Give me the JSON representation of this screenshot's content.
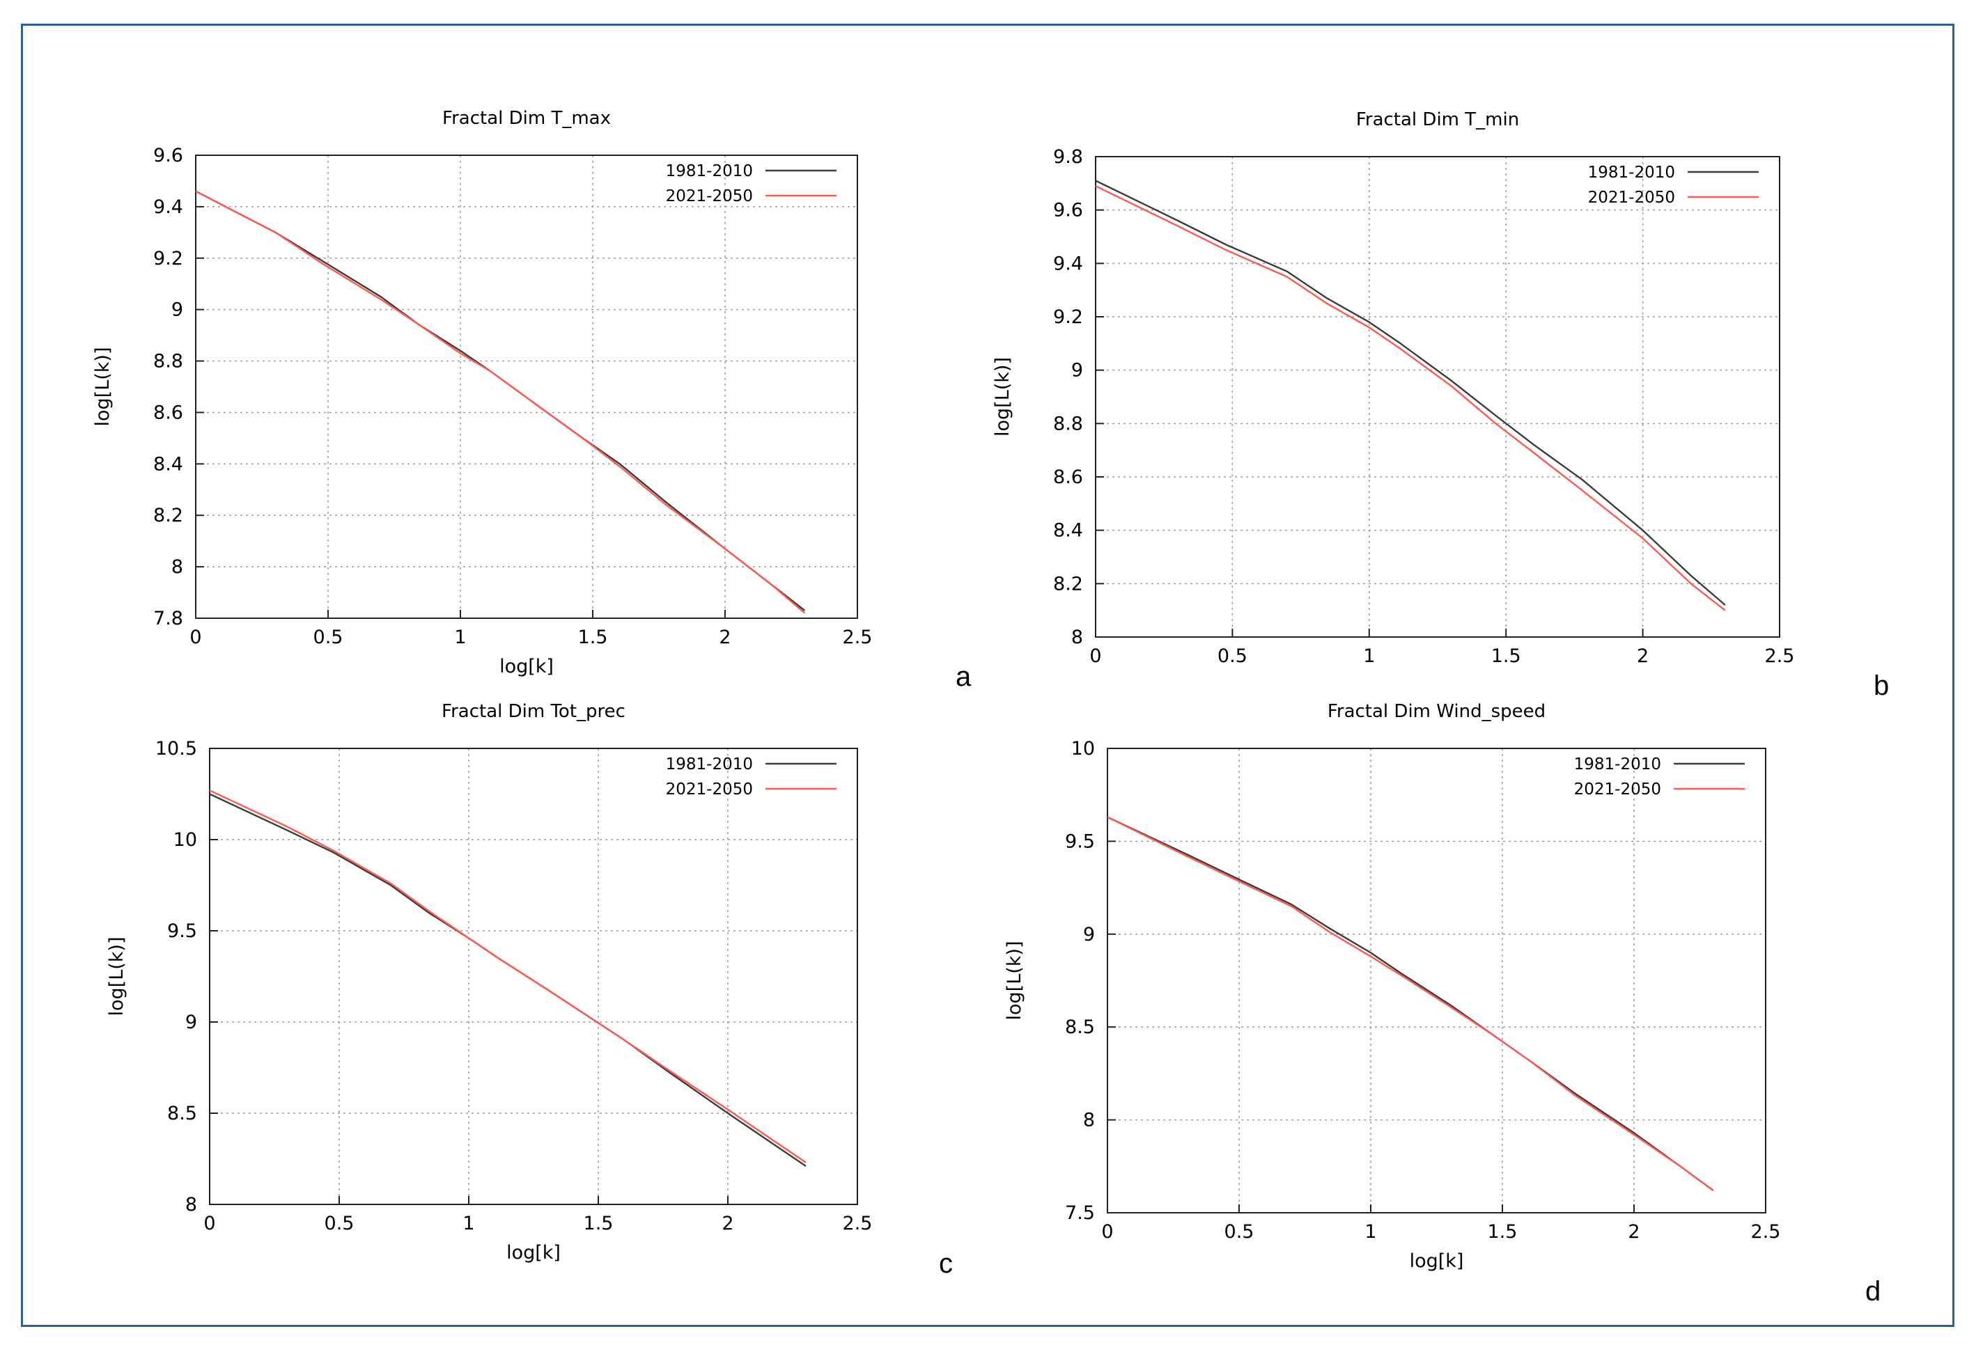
{
  "figure": {
    "border_color": "#2f5f9a",
    "series_colors": {
      "1981-2010": "#3c3c3c",
      "2021-2050": "#ff5a4e"
    }
  },
  "chart_data": [
    {
      "id": "a",
      "panel_label": "a",
      "type": "line",
      "title": "Fractal Dim T_max",
      "xlabel": "log[k]",
      "ylabel": "log[L(k)]",
      "xlim": [
        0,
        2.5
      ],
      "ylim": [
        7.8,
        9.6
      ],
      "xticks": [
        0,
        0.5,
        1,
        1.5,
        2,
        2.5
      ],
      "xtick_labels": [
        "0",
        "0.5",
        "1",
        "1.5",
        "2",
        "2.5"
      ],
      "yticks": [
        7.8,
        8,
        8.2,
        8.4,
        8.6,
        8.8,
        9,
        9.2,
        9.4,
        9.6
      ],
      "ytick_labels": [
        "7.8",
        "8",
        "8.2",
        "8.4",
        "8.6",
        "8.8",
        "9",
        "9.2",
        "9.4",
        "9.6"
      ],
      "grid": true,
      "legend_position": "top-right",
      "series": [
        {
          "name": "1981-2010",
          "color": "#3c3c3c",
          "x": [
            0,
            0.301,
            0.477,
            0.699,
            0.845,
            1.0,
            1.114,
            1.301,
            1.462,
            1.602,
            1.778,
            2.0,
            2.176,
            2.301
          ],
          "y": [
            9.46,
            9.3,
            9.19,
            9.05,
            8.94,
            8.84,
            8.76,
            8.62,
            8.5,
            8.4,
            8.25,
            8.07,
            7.93,
            7.83
          ]
        },
        {
          "name": "2021-2050",
          "color": "#ff5a4e",
          "x": [
            0,
            0.301,
            0.477,
            0.699,
            0.845,
            1.0,
            1.114,
            1.301,
            1.462,
            1.602,
            1.778,
            2.0,
            2.176,
            2.301
          ],
          "y": [
            9.46,
            9.3,
            9.18,
            9.04,
            8.94,
            8.83,
            8.76,
            8.62,
            8.5,
            8.39,
            8.24,
            8.07,
            7.93,
            7.82
          ]
        }
      ]
    },
    {
      "id": "b",
      "panel_label": "b",
      "type": "line",
      "title": "Fractal Dim T_min",
      "xlabel": "",
      "ylabel": "log[L(k)]",
      "xlim": [
        0,
        2.5
      ],
      "ylim": [
        8,
        9.8
      ],
      "xticks": [
        0,
        0.5,
        1,
        1.5,
        2,
        2.5
      ],
      "xtick_labels": [
        "0",
        "0.5",
        "1",
        "1.5",
        "2",
        "2.5"
      ],
      "yticks": [
        8,
        8.2,
        8.4,
        8.6,
        8.8,
        9,
        9.2,
        9.4,
        9.6,
        9.8
      ],
      "ytick_labels": [
        "8",
        "8.2",
        "8.4",
        "8.6",
        "8.8",
        "9",
        "9.2",
        "9.4",
        "9.6",
        "9.8"
      ],
      "grid": true,
      "legend_position": "top-right",
      "series": [
        {
          "name": "1981-2010",
          "color": "#3c3c3c",
          "x": [
            0,
            0.301,
            0.477,
            0.699,
            0.845,
            1.0,
            1.114,
            1.301,
            1.462,
            1.602,
            1.778,
            2.0,
            2.176,
            2.301
          ],
          "y": [
            9.71,
            9.56,
            9.47,
            9.37,
            9.27,
            9.18,
            9.1,
            8.96,
            8.83,
            8.72,
            8.59,
            8.4,
            8.23,
            8.12
          ]
        },
        {
          "name": "2021-2050",
          "color": "#ff5a4e",
          "x": [
            0,
            0.301,
            0.477,
            0.699,
            0.845,
            1.0,
            1.114,
            1.301,
            1.462,
            1.602,
            1.778,
            2.0,
            2.176,
            2.301
          ],
          "y": [
            9.69,
            9.54,
            9.45,
            9.35,
            9.25,
            9.16,
            9.08,
            8.94,
            8.8,
            8.69,
            8.55,
            8.37,
            8.2,
            8.1
          ]
        }
      ]
    },
    {
      "id": "c",
      "panel_label": "c",
      "type": "line",
      "title": "Fractal Dim Tot_prec",
      "xlabel": "log[k]",
      "ylabel": "log[L(k)]",
      "xlim": [
        0,
        2.5
      ],
      "ylim": [
        8,
        10.5
      ],
      "xticks": [
        0,
        0.5,
        1,
        1.5,
        2,
        2.5
      ],
      "xtick_labels": [
        "0",
        "0.5",
        "1",
        "1.5",
        "2",
        "2.5"
      ],
      "yticks": [
        8,
        8.5,
        9,
        9.5,
        10,
        10.5
      ],
      "ytick_labels": [
        "8",
        "8.5",
        "9",
        "9.5",
        "10",
        "10.5"
      ],
      "grid": true,
      "legend_position": "top-right",
      "series": [
        {
          "name": "1981-2010",
          "color": "#3c3c3c",
          "x": [
            0,
            0.301,
            0.477,
            0.699,
            0.845,
            1.0,
            1.114,
            1.301,
            1.462,
            1.602,
            1.778,
            2.0,
            2.176,
            2.301
          ],
          "y": [
            10.25,
            10.05,
            9.93,
            9.75,
            9.6,
            9.46,
            9.35,
            9.18,
            9.03,
            8.9,
            8.72,
            8.5,
            8.33,
            8.21
          ]
        },
        {
          "name": "2021-2050",
          "color": "#ff5a4e",
          "x": [
            0,
            0.301,
            0.477,
            0.699,
            0.845,
            1.0,
            1.114,
            1.301,
            1.462,
            1.602,
            1.778,
            2.0,
            2.176,
            2.301
          ],
          "y": [
            10.27,
            10.07,
            9.94,
            9.76,
            9.61,
            9.46,
            9.35,
            9.18,
            9.03,
            8.9,
            8.73,
            8.52,
            8.35,
            8.23
          ]
        }
      ]
    },
    {
      "id": "d",
      "panel_label": "d",
      "type": "line",
      "title": "Fractal Dim Wind_speed",
      "xlabel": "log[k]",
      "ylabel": "log[L(k)]",
      "xlim": [
        0,
        2.5
      ],
      "ylim": [
        7.5,
        10
      ],
      "xticks": [
        0,
        0.5,
        1,
        1.5,
        2,
        2.5
      ],
      "xtick_labels": [
        "0",
        "0.5",
        "1",
        "1.5",
        "2",
        "2.5"
      ],
      "yticks": [
        7.5,
        8,
        8.5,
        9,
        9.5,
        10
      ],
      "ytick_labels": [
        "7.5",
        "8",
        "8.5",
        "9",
        "9.5",
        "10"
      ],
      "grid": true,
      "legend_position": "top-right",
      "series": [
        {
          "name": "1981-2010",
          "color": "#3c3c3c",
          "x": [
            0,
            0.301,
            0.477,
            0.699,
            0.845,
            1.0,
            1.114,
            1.301,
            1.462,
            1.602,
            1.778,
            2.0,
            2.176,
            2.301
          ],
          "y": [
            9.63,
            9.43,
            9.31,
            9.16,
            9.03,
            8.9,
            8.79,
            8.62,
            8.46,
            8.32,
            8.14,
            7.93,
            7.75,
            7.62
          ]
        },
        {
          "name": "2021-2050",
          "color": "#ff5a4e",
          "x": [
            0,
            0.301,
            0.477,
            0.699,
            0.845,
            1.0,
            1.114,
            1.301,
            1.462,
            1.602,
            1.778,
            2.0,
            2.176,
            2.301
          ],
          "y": [
            9.63,
            9.42,
            9.3,
            9.15,
            9.01,
            8.88,
            8.78,
            8.61,
            8.46,
            8.32,
            8.13,
            7.92,
            7.75,
            7.62
          ]
        }
      ]
    }
  ]
}
